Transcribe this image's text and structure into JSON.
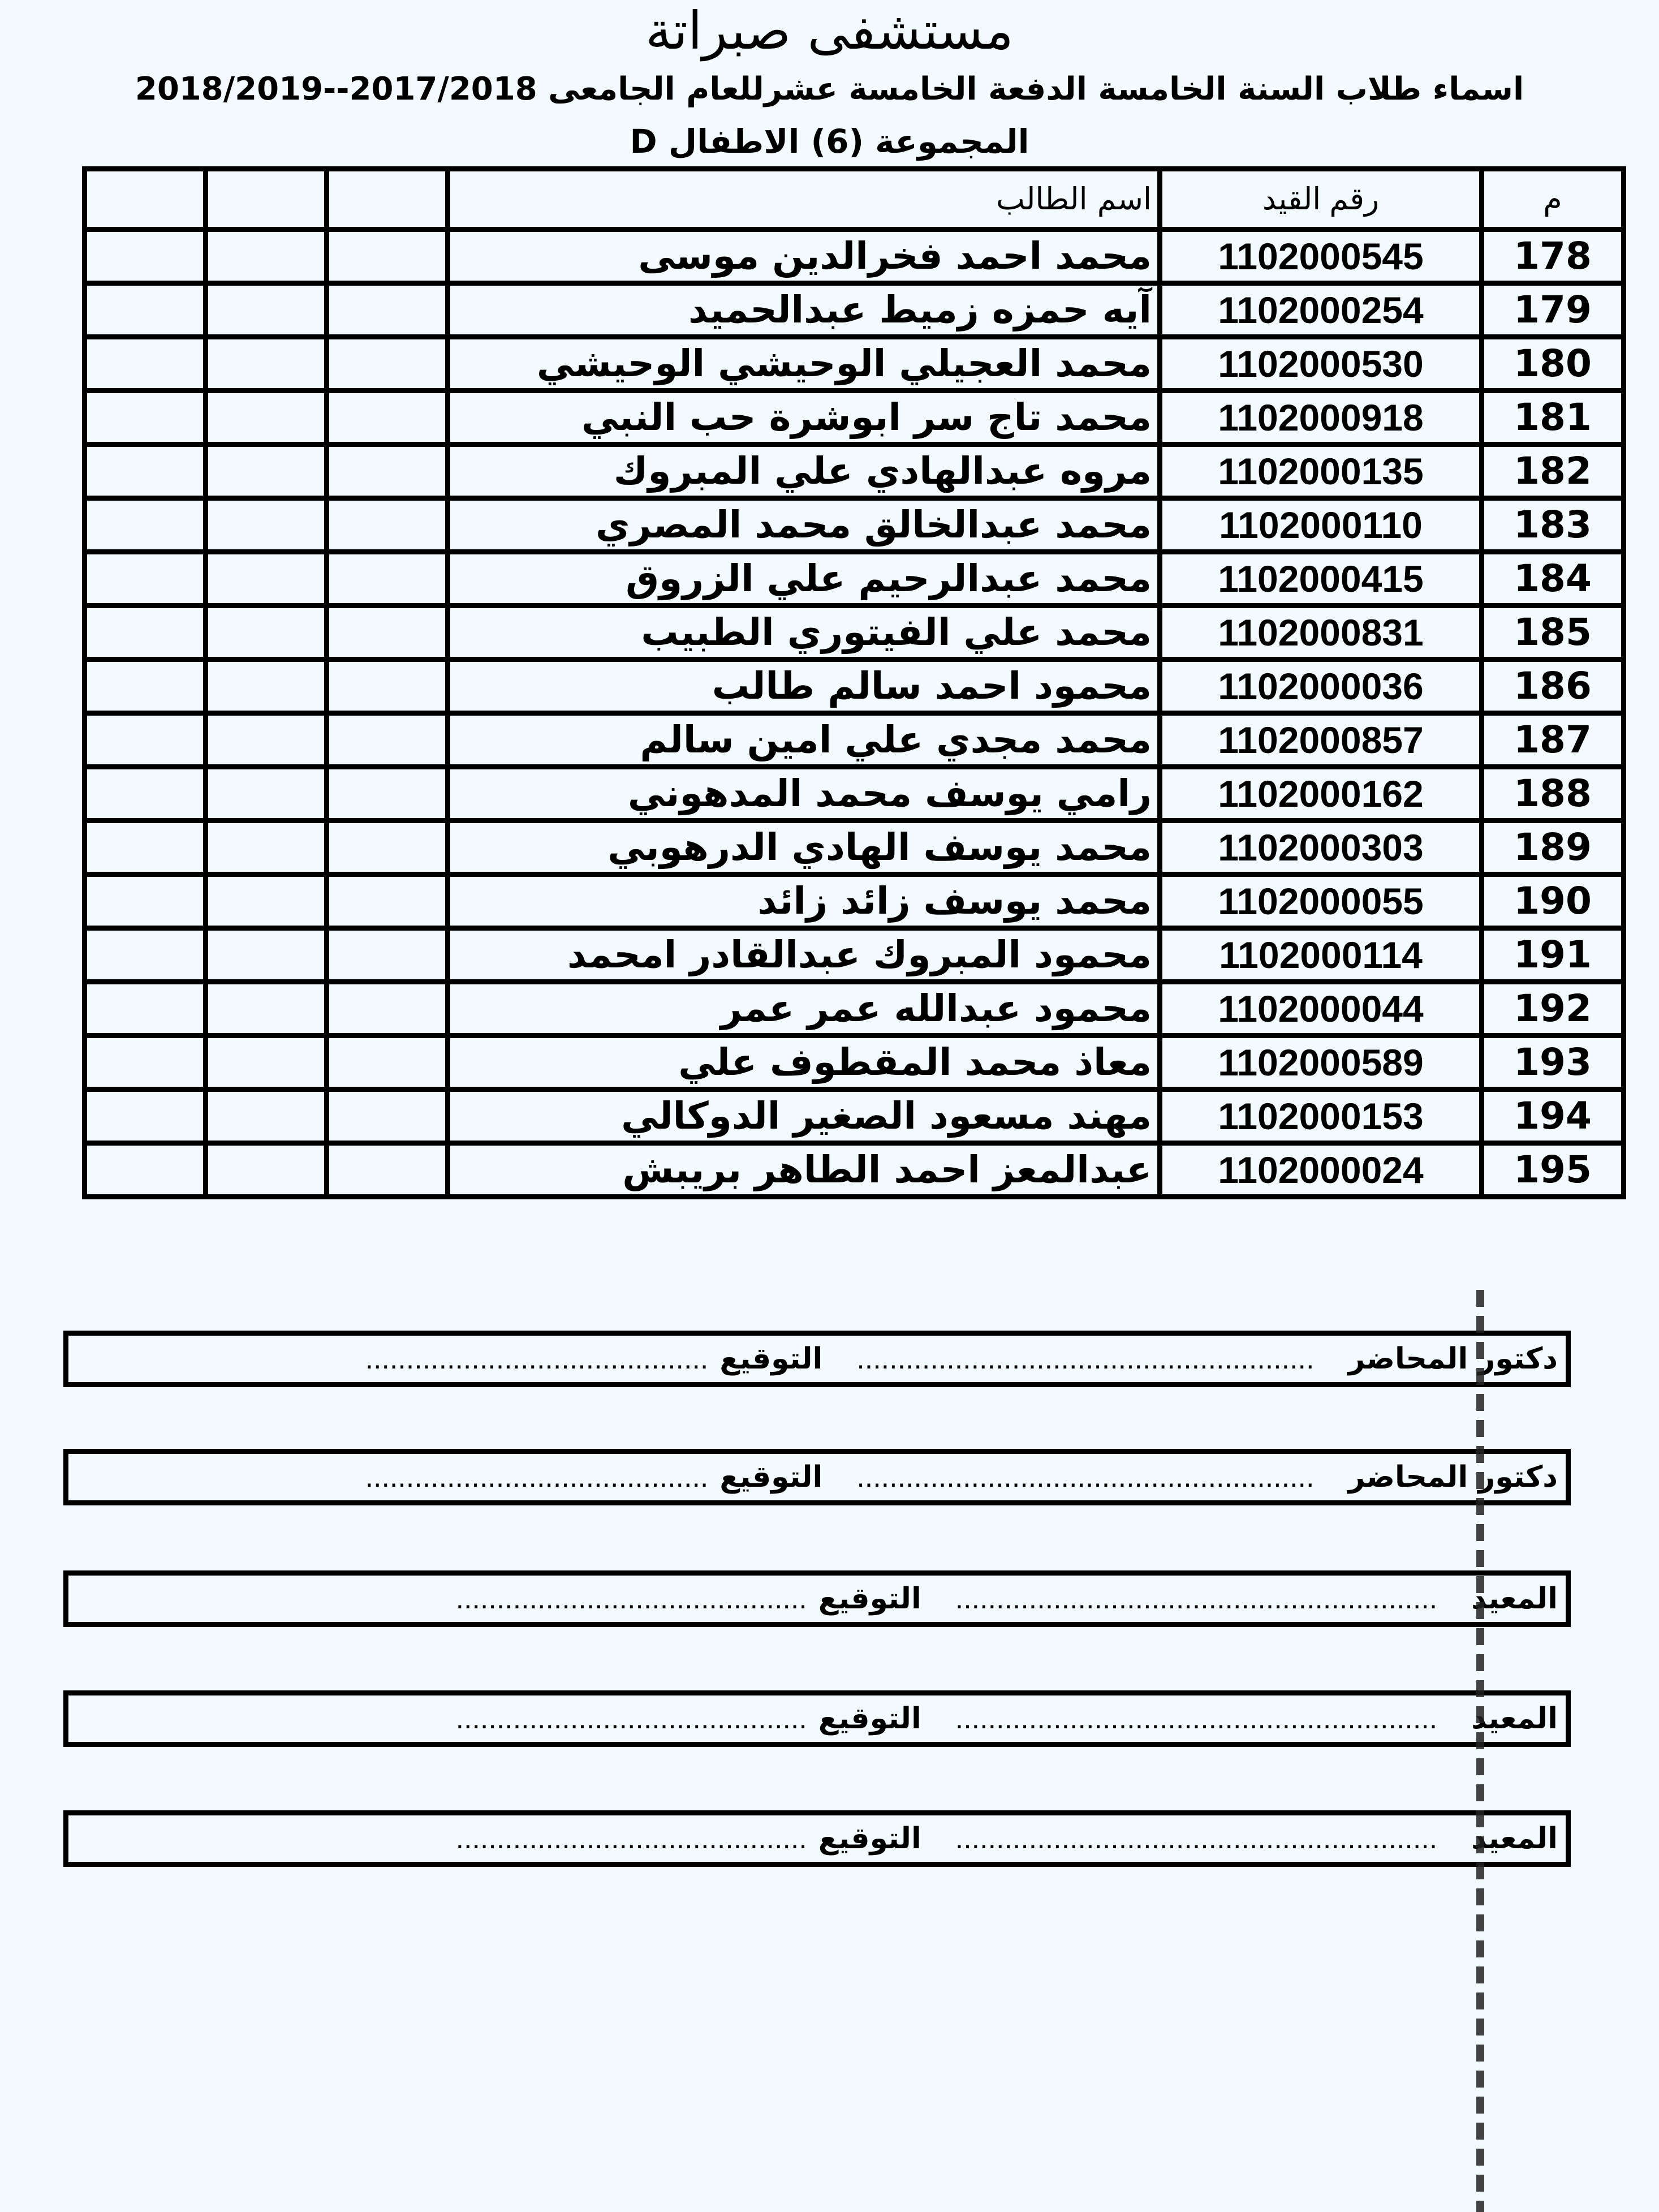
{
  "header": {
    "title": "مستشفى صبراتة",
    "subtitle": "اسماء طلاب السنة الخامسة  الدفعة   الخامسة عشرللعام الجامعى 2017/2018--2018/2019",
    "group": "المجموعة (6) الاطفال D"
  },
  "table": {
    "columns": [
      "م",
      "رقم القيد",
      "اسم الطالب",
      "",
      "",
      ""
    ],
    "rows": [
      {
        "m": "178",
        "id": "1102000545",
        "name": "محمد احمد فخرالدين موسى"
      },
      {
        "m": "179",
        "id": "1102000254",
        "name": "آيه حمزه زميط عبدالحميد"
      },
      {
        "m": "180",
        "id": "1102000530",
        "name": "محمد العجيلي الوحيشي الوحيشي"
      },
      {
        "m": "181",
        "id": "1102000918",
        "name": "محمد تاج سر ابوشرة حب النبي"
      },
      {
        "m": "182",
        "id": "1102000135",
        "name": "مروه عبدالهادي علي المبروك"
      },
      {
        "m": "183",
        "id": "1102000110",
        "name": "محمد عبدالخالق محمد  المصري"
      },
      {
        "m": "184",
        "id": "1102000415",
        "name": "محمد عبدالرحيم علي الزروق"
      },
      {
        "m": "185",
        "id": "1102000831",
        "name": "محمد علي الفيتوري الطبيب"
      },
      {
        "m": "186",
        "id": "1102000036",
        "name": "محمود احمد سالم طالب"
      },
      {
        "m": "187",
        "id": "1102000857",
        "name": "محمد مجدي علي امين  سالم"
      },
      {
        "m": "188",
        "id": "1102000162",
        "name": "رامي يوسف محمد المدهوني"
      },
      {
        "m": "189",
        "id": "1102000303",
        "name": "محمد يوسف الهادي الدرهوبي"
      },
      {
        "m": "190",
        "id": "1102000055",
        "name": "محمد يوسف زائد زائد"
      },
      {
        "m": "191",
        "id": "1102000114",
        "name": "محمود المبروك عبدالقادر امحمد"
      },
      {
        "m": "192",
        "id": "1102000044",
        "name": "محمود عبدالله عمر عمر"
      },
      {
        "m": "193",
        "id": "1102000589",
        "name": "معاذ محمد المقطوف علي"
      },
      {
        "m": "194",
        "id": "1102000153",
        "name": "مهند مسعود الصغير الدوكالي"
      },
      {
        "m": "195",
        "id": "1102000024",
        "name": "عبدالمعز احمد الطاهر بريبش"
      }
    ]
  },
  "signatures": [
    {
      "label": "دكتور المحاضر",
      "dots1": "........................................................",
      "sign_label": "التوقيع",
      "dots2": ".........................................."
    },
    {
      "label": "دكتور المحاضر",
      "dots1": "........................................................",
      "sign_label": "التوقيع",
      "dots2": ".........................................."
    },
    {
      "label": "المعيد",
      "dots1": "...........................................................",
      "sign_label": "التوقيع",
      "dots2": "..........................................."
    },
    {
      "label": "المعيد",
      "dots1": "...........................................................",
      "sign_label": "التوقيع",
      "dots2": "..........................................."
    },
    {
      "label": "المعيد",
      "dots1": "...........................................................",
      "sign_label": "التوقيع",
      "dots2": "..........................................."
    }
  ]
}
